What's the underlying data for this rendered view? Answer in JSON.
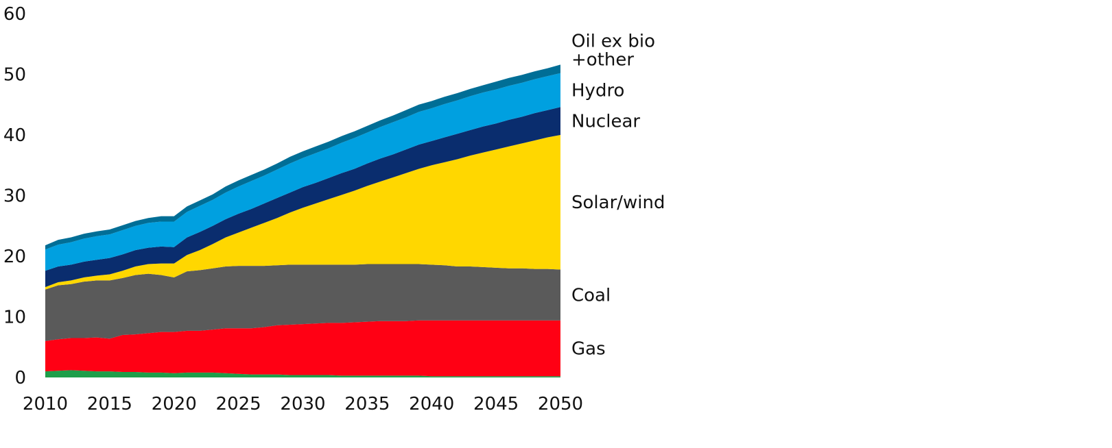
{
  "chart_data": {
    "type": "area",
    "stacked": true,
    "title": "",
    "xlabel": "",
    "ylabel": "",
    "xlim": [
      2010,
      2050
    ],
    "ylim": [
      0,
      60
    ],
    "x_ticks": [
      2010,
      2015,
      2020,
      2025,
      2030,
      2035,
      2040,
      2045,
      2050
    ],
    "y_ticks": [
      0,
      10,
      20,
      30,
      40,
      50,
      60
    ],
    "grid": false,
    "legend": "direct labels at right end of areas",
    "x": [
      2010,
      2011,
      2012,
      2013,
      2014,
      2015,
      2016,
      2017,
      2018,
      2019,
      2020,
      2021,
      2022,
      2023,
      2024,
      2025,
      2026,
      2027,
      2028,
      2029,
      2030,
      2031,
      2032,
      2033,
      2034,
      2035,
      2036,
      2037,
      2038,
      2039,
      2040,
      2041,
      2042,
      2043,
      2044,
      2045,
      2046,
      2047,
      2048,
      2049,
      2050
    ],
    "series": [
      {
        "name": "",
        "color": "#1e9e4a",
        "values": [
          1.0,
          1.1,
          1.2,
          1.1,
          1.0,
          1.0,
          0.9,
          0.9,
          0.8,
          0.8,
          0.7,
          0.8,
          0.8,
          0.8,
          0.7,
          0.6,
          0.5,
          0.5,
          0.5,
          0.4,
          0.4,
          0.4,
          0.4,
          0.3,
          0.3,
          0.3,
          0.3,
          0.3,
          0.3,
          0.3,
          0.2,
          0.2,
          0.2,
          0.2,
          0.2,
          0.2,
          0.2,
          0.2,
          0.2,
          0.2,
          0.2
        ]
      },
      {
        "name": "Gas",
        "color": "#ff0014",
        "values": [
          5.0,
          5.2,
          5.3,
          5.4,
          5.6,
          5.4,
          6.1,
          6.2,
          6.5,
          6.7,
          6.8,
          6.9,
          6.9,
          7.1,
          7.4,
          7.5,
          7.6,
          7.8,
          8.1,
          8.3,
          8.4,
          8.5,
          8.6,
          8.7,
          8.8,
          8.9,
          9.0,
          9.0,
          9.0,
          9.1,
          9.2,
          9.2,
          9.2,
          9.2,
          9.2,
          9.2,
          9.2,
          9.2,
          9.2,
          9.2,
          9.2
        ]
      },
      {
        "name": "Coal",
        "color": "#5a5a5a",
        "values": [
          8.5,
          8.9,
          8.9,
          9.3,
          9.4,
          9.6,
          9.4,
          9.8,
          9.8,
          9.4,
          9.0,
          9.8,
          10.0,
          10.1,
          10.2,
          10.3,
          10.3,
          10.1,
          9.9,
          9.9,
          9.8,
          9.7,
          9.6,
          9.6,
          9.5,
          9.5,
          9.4,
          9.4,
          9.4,
          9.3,
          9.2,
          9.1,
          8.9,
          8.9,
          8.8,
          8.7,
          8.6,
          8.6,
          8.5,
          8.5,
          8.4
        ]
      },
      {
        "name": "Solar/wind",
        "color": "#ffd700",
        "values": [
          0.4,
          0.5,
          0.6,
          0.7,
          0.8,
          1.0,
          1.2,
          1.4,
          1.6,
          1.9,
          2.3,
          2.7,
          3.3,
          4.0,
          4.8,
          5.5,
          6.3,
          7.1,
          7.8,
          8.6,
          9.4,
          10.1,
          10.8,
          11.5,
          12.2,
          12.9,
          13.6,
          14.3,
          15.0,
          15.7,
          16.4,
          17.0,
          17.7,
          18.3,
          18.9,
          19.5,
          20.1,
          20.6,
          21.2,
          21.7,
          22.2
        ]
      },
      {
        "name": "Nuclear",
        "color": "#0a2d6e",
        "values": [
          2.7,
          2.6,
          2.6,
          2.6,
          2.6,
          2.7,
          2.7,
          2.7,
          2.7,
          2.8,
          2.7,
          2.9,
          3.0,
          3.0,
          3.0,
          3.1,
          3.1,
          3.2,
          3.3,
          3.3,
          3.4,
          3.4,
          3.5,
          3.6,
          3.6,
          3.7,
          3.8,
          3.8,
          3.9,
          4.0,
          4.0,
          4.1,
          4.2,
          4.2,
          4.3,
          4.3,
          4.4,
          4.4,
          4.5,
          4.5,
          4.6
        ]
      },
      {
        "name": "Hydro",
        "color": "#00a0e0",
        "values": [
          3.5,
          3.6,
          3.7,
          3.8,
          3.9,
          3.9,
          4.0,
          4.0,
          4.1,
          4.1,
          4.2,
          4.2,
          4.3,
          4.3,
          4.4,
          4.5,
          4.6,
          4.6,
          4.7,
          4.8,
          4.8,
          4.9,
          4.9,
          5.0,
          5.1,
          5.1,
          5.2,
          5.3,
          5.3,
          5.4,
          5.4,
          5.5,
          5.5,
          5.6,
          5.6,
          5.6,
          5.6,
          5.6,
          5.6,
          5.6,
          5.6
        ]
      },
      {
        "name": "Oil ex bio\n+other",
        "color": "#006e96",
        "values": [
          0.7,
          0.8,
          0.8,
          0.8,
          0.8,
          0.8,
          0.8,
          0.8,
          0.8,
          0.9,
          0.9,
          0.9,
          0.9,
          0.9,
          1.0,
          1.0,
          1.0,
          1.0,
          1.0,
          1.1,
          1.1,
          1.1,
          1.1,
          1.1,
          1.1,
          1.1,
          1.1,
          1.1,
          1.2,
          1.2,
          1.2,
          1.2,
          1.2,
          1.2,
          1.2,
          1.3,
          1.3,
          1.3,
          1.3,
          1.3,
          1.4
        ]
      }
    ]
  }
}
